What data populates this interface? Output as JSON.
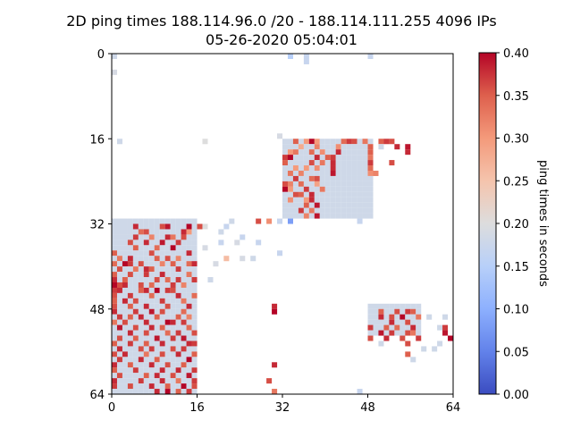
{
  "chart_data": {
    "type": "heatmap",
    "title_lines": [
      "2D ping times 188.114.96.0 /20 - 188.114.111.255 4096 IPs",
      "05-26-2020 05:04:01"
    ],
    "grid_size": [
      64,
      64
    ],
    "x_ticks": [
      "0",
      "16",
      "32",
      "48",
      "64"
    ],
    "y_ticks": [
      "0",
      "16",
      "32",
      "48",
      "64"
    ],
    "xlim": [
      0,
      64
    ],
    "ylim": [
      64,
      0
    ],
    "colormap": "coolwarm",
    "colorbar": {
      "label": "ping times in seconds",
      "range": [
        0.0,
        0.4
      ],
      "ticks": [
        "0.00",
        "0.05",
        "0.10",
        "0.15",
        "0.20",
        "0.25",
        "0.30",
        "0.35",
        "0.40"
      ]
    },
    "missing_color": "#ffffff",
    "note_values": "per-cell ping time in seconds",
    "blocks": [
      {
        "rows": [
          16,
          31
        ],
        "cols": [
          32,
          49
        ],
        "base": 0.18
      },
      {
        "rows": [
          31,
          64
        ],
        "cols": [
          0,
          16
        ],
        "base": 0.18
      },
      {
        "rows": [
          47,
          53
        ],
        "cols": [
          48,
          58
        ],
        "base": 0.18
      }
    ],
    "cells": [
      [
        0,
        0,
        0.18
      ],
      [
        0,
        33,
        0.15
      ],
      [
        0,
        36,
        0.17
      ],
      [
        0,
        48,
        0.17
      ],
      [
        1,
        36,
        0.17
      ],
      [
        3,
        0,
        0.19
      ],
      [
        16,
        1,
        0.18
      ],
      [
        16,
        17,
        0.2
      ],
      [
        15,
        31,
        0.19
      ],
      [
        16,
        34,
        0.35
      ],
      [
        16,
        36,
        0.3
      ],
      [
        16,
        37,
        0.4
      ],
      [
        16,
        38,
        0.3
      ],
      [
        16,
        43,
        0.34
      ],
      [
        16,
        44,
        0.37
      ],
      [
        16,
        45,
        0.36
      ],
      [
        16,
        47,
        0.33
      ],
      [
        16,
        50,
        0.35
      ],
      [
        16,
        51,
        0.37
      ],
      [
        16,
        52,
        0.36
      ],
      [
        17,
        35,
        0.28
      ],
      [
        17,
        38,
        0.32
      ],
      [
        17,
        42,
        0.31
      ],
      [
        17,
        48,
        0.35
      ],
      [
        17,
        50,
        0.18
      ],
      [
        17,
        53,
        0.38
      ],
      [
        17,
        55,
        0.39
      ],
      [
        18,
        33,
        0.3
      ],
      [
        18,
        34,
        0.33
      ],
      [
        18,
        37,
        0.34
      ],
      [
        18,
        39,
        0.31
      ],
      [
        18,
        42,
        0.38
      ],
      [
        18,
        48,
        0.35
      ],
      [
        18,
        55,
        0.38
      ],
      [
        19,
        32,
        0.37
      ],
      [
        19,
        33,
        0.4
      ],
      [
        19,
        38,
        0.38
      ],
      [
        19,
        40,
        0.35
      ],
      [
        19,
        41,
        0.37
      ],
      [
        19,
        48,
        0.33
      ],
      [
        20,
        32,
        0.35
      ],
      [
        20,
        37,
        0.36
      ],
      [
        20,
        39,
        0.33
      ],
      [
        20,
        41,
        0.38
      ],
      [
        20,
        48,
        0.37
      ],
      [
        20,
        52,
        0.36
      ],
      [
        21,
        34,
        0.3
      ],
      [
        21,
        36,
        0.3
      ],
      [
        21,
        38,
        0.31
      ],
      [
        21,
        41,
        0.38
      ],
      [
        21,
        48,
        0.34
      ],
      [
        22,
        33,
        0.33
      ],
      [
        22,
        35,
        0.32
      ],
      [
        22,
        41,
        0.39
      ],
      [
        22,
        48,
        0.31
      ],
      [
        22,
        49,
        0.32
      ],
      [
        23,
        34,
        0.37
      ],
      [
        23,
        37,
        0.34
      ],
      [
        23,
        38,
        0.36
      ],
      [
        24,
        32,
        0.36
      ],
      [
        24,
        33,
        0.32
      ],
      [
        24,
        35,
        0.34
      ],
      [
        24,
        38,
        0.29
      ],
      [
        25,
        32,
        0.4
      ],
      [
        25,
        33,
        0.3
      ],
      [
        25,
        36,
        0.37
      ],
      [
        25,
        39,
        0.33
      ],
      [
        26,
        34,
        0.36
      ],
      [
        26,
        35,
        0.35
      ],
      [
        26,
        37,
        0.38
      ],
      [
        27,
        33,
        0.31
      ],
      [
        27,
        36,
        0.3
      ],
      [
        27,
        37,
        0.38
      ],
      [
        28,
        36,
        0.35
      ],
      [
        28,
        38,
        0.39
      ],
      [
        29,
        35,
        0.37
      ],
      [
        29,
        37,
        0.33
      ],
      [
        30,
        36,
        0.32
      ],
      [
        30,
        38,
        0.39
      ],
      [
        31,
        27,
        0.36
      ],
      [
        31,
        29,
        0.31
      ],
      [
        31,
        22,
        0.18
      ],
      [
        31,
        33,
        0.08
      ],
      [
        31,
        46,
        0.17
      ],
      [
        31,
        31,
        0.17
      ],
      [
        32,
        4,
        0.38
      ],
      [
        32,
        9,
        0.36
      ],
      [
        32,
        10,
        0.39
      ],
      [
        32,
        14,
        0.4
      ],
      [
        32,
        16,
        0.36
      ],
      [
        32,
        17,
        0.2
      ],
      [
        32,
        21,
        0.17
      ],
      [
        33,
        5,
        0.34
      ],
      [
        33,
        6,
        0.36
      ],
      [
        33,
        13,
        0.38
      ],
      [
        33,
        14,
        0.3
      ],
      [
        33,
        20,
        0.18
      ],
      [
        34,
        4,
        0.37
      ],
      [
        34,
        7,
        0.32
      ],
      [
        34,
        10,
        0.38
      ],
      [
        34,
        11,
        0.33
      ],
      [
        34,
        13,
        0.36
      ],
      [
        34,
        24,
        0.17
      ],
      [
        35,
        3,
        0.36
      ],
      [
        35,
        6,
        0.38
      ],
      [
        35,
        9,
        0.39
      ],
      [
        35,
        12,
        0.37
      ],
      [
        35,
        20,
        0.17
      ],
      [
        35,
        23,
        0.19
      ],
      [
        35,
        27,
        0.17
      ],
      [
        36,
        4,
        0.35
      ],
      [
        36,
        8,
        0.34
      ],
      [
        36,
        11,
        0.4
      ],
      [
        36,
        17,
        0.19
      ],
      [
        37,
        0,
        0.35
      ],
      [
        37,
        7,
        0.36
      ],
      [
        37,
        14,
        0.38
      ],
      [
        37,
        31,
        0.17
      ],
      [
        38,
        1,
        0.33
      ],
      [
        38,
        3,
        0.38
      ],
      [
        38,
        8,
        0.35
      ],
      [
        38,
        10,
        0.36
      ],
      [
        38,
        12,
        0.32
      ],
      [
        38,
        21,
        0.26
      ],
      [
        38,
        24,
        0.19
      ],
      [
        38,
        26,
        0.18
      ],
      [
        39,
        0,
        0.34
      ],
      [
        39,
        2,
        0.4
      ],
      [
        39,
        3,
        0.37
      ],
      [
        39,
        5,
        0.36
      ],
      [
        39,
        9,
        0.32
      ],
      [
        39,
        11,
        0.35
      ],
      [
        39,
        14,
        0.34
      ],
      [
        39,
        15,
        0.38
      ],
      [
        39,
        19,
        0.19
      ],
      [
        40,
        1,
        0.36
      ],
      [
        40,
        4,
        0.33
      ],
      [
        40,
        6,
        0.38
      ],
      [
        40,
        7,
        0.35
      ],
      [
        40,
        12,
        0.37
      ],
      [
        41,
        0,
        0.35
      ],
      [
        41,
        3,
        0.36
      ],
      [
        41,
        6,
        0.37
      ],
      [
        41,
        9,
        0.38
      ],
      [
        41,
        14,
        0.33
      ],
      [
        42,
        0,
        0.38
      ],
      [
        42,
        2,
        0.35
      ],
      [
        42,
        8,
        0.36
      ],
      [
        42,
        10,
        0.34
      ],
      [
        42,
        12,
        0.37
      ],
      [
        42,
        15,
        0.37
      ],
      [
        42,
        18,
        0.18
      ],
      [
        43,
        0,
        0.4
      ],
      [
        43,
        1,
        0.36
      ],
      [
        43,
        2,
        0.38
      ],
      [
        43,
        5,
        0.36
      ],
      [
        43,
        7,
        0.34
      ],
      [
        43,
        11,
        0.37
      ],
      [
        43,
        13,
        0.32
      ],
      [
        44,
        0,
        0.37
      ],
      [
        44,
        1,
        0.38
      ],
      [
        44,
        5,
        0.35
      ],
      [
        44,
        6,
        0.38
      ],
      [
        44,
        8,
        0.4
      ],
      [
        44,
        10,
        0.37
      ],
      [
        44,
        11,
        0.36
      ],
      [
        45,
        0,
        0.36
      ],
      [
        45,
        3,
        0.37
      ],
      [
        45,
        7,
        0.34
      ],
      [
        45,
        12,
        0.38
      ],
      [
        45,
        15,
        0.34
      ],
      [
        46,
        0,
        0.35
      ],
      [
        46,
        2,
        0.38
      ],
      [
        46,
        4,
        0.36
      ],
      [
        46,
        9,
        0.37
      ],
      [
        46,
        13,
        0.33
      ],
      [
        47,
        0,
        0.36
      ],
      [
        47,
        3,
        0.35
      ],
      [
        47,
        6,
        0.38
      ],
      [
        47,
        10,
        0.36
      ],
      [
        47,
        14,
        0.38
      ],
      [
        47,
        30,
        0.38
      ],
      [
        48,
        0,
        0.38
      ],
      [
        48,
        4,
        0.37
      ],
      [
        48,
        7,
        0.39
      ],
      [
        48,
        9,
        0.36
      ],
      [
        48,
        13,
        0.34
      ],
      [
        48,
        30,
        0.4
      ],
      [
        48,
        50,
        0.35
      ],
      [
        48,
        53,
        0.36
      ],
      [
        48,
        55,
        0.37
      ],
      [
        48,
        56,
        0.35
      ],
      [
        49,
        1,
        0.37
      ],
      [
        49,
        3,
        0.35
      ],
      [
        49,
        5,
        0.38
      ],
      [
        49,
        8,
        0.35
      ],
      [
        49,
        12,
        0.35
      ],
      [
        49,
        14,
        0.32
      ],
      [
        49,
        50,
        0.38
      ],
      [
        49,
        52,
        0.36
      ],
      [
        49,
        54,
        0.4
      ],
      [
        49,
        57,
        0.33
      ],
      [
        49,
        59,
        0.18
      ],
      [
        49,
        62,
        0.18
      ],
      [
        50,
        0,
        0.33
      ],
      [
        50,
        2,
        0.36
      ],
      [
        50,
        6,
        0.38
      ],
      [
        50,
        10,
        0.4
      ],
      [
        50,
        11,
        0.38
      ],
      [
        50,
        13,
        0.37
      ],
      [
        50,
        52,
        0.38
      ],
      [
        50,
        55,
        0.36
      ],
      [
        51,
        1,
        0.39
      ],
      [
        51,
        4,
        0.36
      ],
      [
        51,
        7,
        0.38
      ],
      [
        51,
        9,
        0.35
      ],
      [
        51,
        14,
        0.34
      ],
      [
        51,
        48,
        0.37
      ],
      [
        51,
        51,
        0.35
      ],
      [
        51,
        53,
        0.34
      ],
      [
        51,
        56,
        0.38
      ],
      [
        51,
        61,
        0.18
      ],
      [
        51,
        62,
        0.37
      ],
      [
        52,
        3,
        0.38
      ],
      [
        52,
        6,
        0.36
      ],
      [
        52,
        10,
        0.34
      ],
      [
        52,
        12,
        0.37
      ],
      [
        52,
        15,
        0.36
      ],
      [
        52,
        50,
        0.39
      ],
      [
        52,
        52,
        0.37
      ],
      [
        52,
        55,
        0.36
      ],
      [
        52,
        56,
        0.33
      ],
      [
        52,
        62,
        0.39
      ],
      [
        53,
        1,
        0.36
      ],
      [
        53,
        4,
        0.35
      ],
      [
        53,
        8,
        0.39
      ],
      [
        53,
        11,
        0.37
      ],
      [
        53,
        13,
        0.39
      ],
      [
        53,
        48,
        0.36
      ],
      [
        53,
        51,
        0.38
      ],
      [
        53,
        54,
        0.36
      ],
      [
        53,
        57,
        0.37
      ],
      [
        53,
        63,
        0.4
      ],
      [
        54,
        0,
        0.35
      ],
      [
        54,
        3,
        0.37
      ],
      [
        54,
        6,
        0.35
      ],
      [
        54,
        9,
        0.38
      ],
      [
        54,
        14,
        0.38
      ],
      [
        54,
        15,
        0.37
      ],
      [
        54,
        50,
        0.18
      ],
      [
        54,
        55,
        0.36
      ],
      [
        54,
        61,
        0.18
      ],
      [
        55,
        1,
        0.38
      ],
      [
        55,
        5,
        0.36
      ],
      [
        55,
        7,
        0.37
      ],
      [
        55,
        11,
        0.36
      ],
      [
        55,
        13,
        0.37
      ],
      [
        55,
        58,
        0.18
      ],
      [
        55,
        60,
        0.18
      ],
      [
        56,
        0,
        0.36
      ],
      [
        56,
        2,
        0.38
      ],
      [
        56,
        6,
        0.33
      ],
      [
        56,
        9,
        0.36
      ],
      [
        56,
        12,
        0.38
      ],
      [
        56,
        15,
        0.35
      ],
      [
        56,
        55,
        0.35
      ],
      [
        57,
        1,
        0.37
      ],
      [
        57,
        5,
        0.38
      ],
      [
        57,
        8,
        0.35
      ],
      [
        57,
        14,
        0.4
      ],
      [
        57,
        56,
        0.18
      ],
      [
        58,
        0,
        0.38
      ],
      [
        58,
        3,
        0.35
      ],
      [
        58,
        7,
        0.38
      ],
      [
        58,
        10,
        0.36
      ],
      [
        58,
        13,
        0.35
      ],
      [
        58,
        30,
        0.38
      ],
      [
        59,
        0,
        0.35
      ],
      [
        59,
        4,
        0.37
      ],
      [
        59,
        9,
        0.38
      ],
      [
        59,
        12,
        0.38
      ],
      [
        59,
        15,
        0.37
      ],
      [
        60,
        1,
        0.36
      ],
      [
        60,
        6,
        0.35
      ],
      [
        60,
        8,
        0.38
      ],
      [
        60,
        11,
        0.36
      ],
      [
        60,
        14,
        0.39
      ],
      [
        61,
        0,
        0.38
      ],
      [
        61,
        5,
        0.37
      ],
      [
        61,
        9,
        0.38
      ],
      [
        61,
        12,
        0.33
      ],
      [
        61,
        15,
        0.37
      ],
      [
        61,
        29,
        0.36
      ],
      [
        62,
        0,
        0.37
      ],
      [
        62,
        3,
        0.36
      ],
      [
        62,
        7,
        0.38
      ],
      [
        62,
        10,
        0.35
      ],
      [
        62,
        13,
        0.4
      ],
      [
        62,
        15,
        0.36
      ],
      [
        63,
        8,
        0.38
      ],
      [
        63,
        10,
        0.4
      ],
      [
        63,
        12,
        0.35
      ],
      [
        63,
        14,
        0.37
      ],
      [
        63,
        46,
        0.17
      ],
      [
        63,
        30,
        0.33
      ]
    ]
  }
}
